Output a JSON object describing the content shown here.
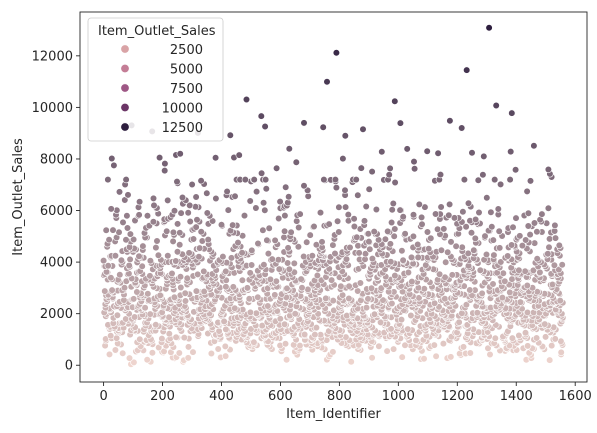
{
  "chart_data": {
    "type": "scatter",
    "title": "",
    "xlabel": "Item_Identifier",
    "ylabel": "Item_Outlet_Sales",
    "xlim": [
      -80,
      1640
    ],
    "ylim": [
      -650,
      13700
    ],
    "xticks": [
      0,
      200,
      400,
      600,
      800,
      1000,
      1200,
      1400,
      1600
    ],
    "yticks": [
      0,
      2000,
      4000,
      6000,
      8000,
      10000,
      12000
    ],
    "grid": false,
    "hue": "Item_Outlet_Sales",
    "palette_light": "#f0d6cf",
    "palette_dark": "#2d1e3e",
    "hue_range": [
      33,
      13087
    ],
    "n_points": 1559,
    "dense_band": [
      0,
      7000
    ],
    "legend": {
      "title": "Item_Outlet_Sales",
      "placement": "upper-left",
      "entries": [
        {
          "label": "2500",
          "color": "#d9a3a6"
        },
        {
          "label": "5000",
          "color": "#c47d96"
        },
        {
          "label": "7500",
          "color": "#9e5785"
        },
        {
          "label": "10000",
          "color": "#6b3566"
        },
        {
          "label": "12500",
          "color": "#2d1e3e"
        }
      ]
    },
    "outliers": [
      {
        "x": 1308,
        "y": 13087
      },
      {
        "x": 790,
        "y": 12118
      },
      {
        "x": 1232,
        "y": 11445
      },
      {
        "x": 758,
        "y": 10994
      },
      {
        "x": 485,
        "y": 10306
      },
      {
        "x": 988,
        "y": 10236
      },
      {
        "x": 1332,
        "y": 10072
      },
      {
        "x": 1385,
        "y": 9779
      },
      {
        "x": 535,
        "y": 9664
      },
      {
        "x": 1007,
        "y": 9390
      },
      {
        "x": 1175,
        "y": 9480
      },
      {
        "x": 680,
        "y": 9400
      },
      {
        "x": 745,
        "y": 9230
      },
      {
        "x": 1215,
        "y": 9200
      },
      {
        "x": 880,
        "y": 9150
      },
      {
        "x": 548,
        "y": 9260
      },
      {
        "x": 95,
        "y": 9300
      },
      {
        "x": 320,
        "y": 9010
      },
      {
        "x": 165,
        "y": 9070
      },
      {
        "x": 430,
        "y": 8920
      },
      {
        "x": 820,
        "y": 8900
      },
      {
        "x": 1460,
        "y": 8510
      },
      {
        "x": 1030,
        "y": 8390
      },
      {
        "x": 1098,
        "y": 8300
      },
      {
        "x": 1135,
        "y": 8220
      },
      {
        "x": 1250,
        "y": 8240
      },
      {
        "x": 1290,
        "y": 8100
      },
      {
        "x": 460,
        "y": 8150
      },
      {
        "x": 630,
        "y": 8400
      },
      {
        "x": 260,
        "y": 8200
      },
      {
        "x": 35,
        "y": 7750
      },
      {
        "x": 380,
        "y": 8050
      },
      {
        "x": 1520,
        "y": 7300
      }
    ]
  }
}
